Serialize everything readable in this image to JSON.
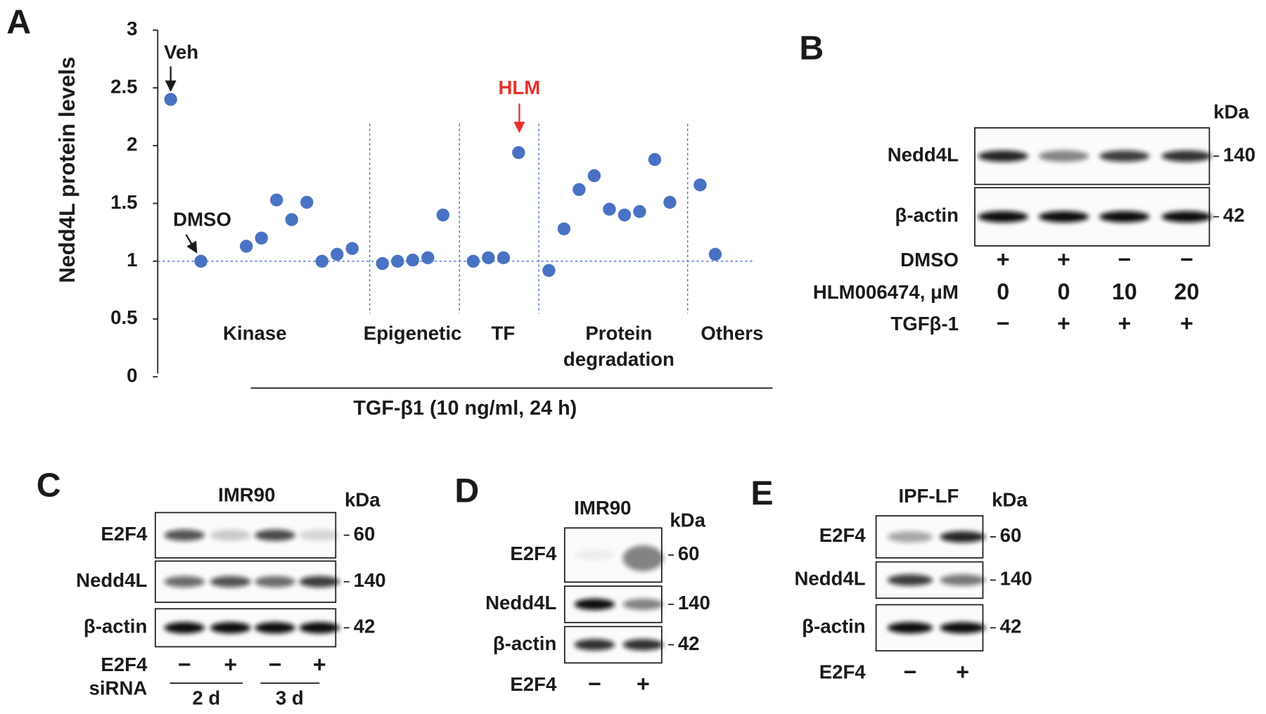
{
  "chart_data": {
    "type": "scatter",
    "y_label": "Nedd4L protein levels",
    "color": "#4a72c4",
    "categories": [
      null,
      null,
      null,
      null,
      null,
      null,
      null,
      null,
      null,
      null,
      null,
      null,
      null,
      null,
      null,
      null,
      null,
      null,
      null,
      null,
      null,
      null,
      null,
      null,
      null,
      null,
      null,
      null,
      null,
      null,
      null,
      null,
      null,
      null,
      null,
      null,
      null
    ],
    "values": [
      2.4,
      null,
      1.0,
      null,
      null,
      1.13,
      1.2,
      1.53,
      1.36,
      1.51,
      1.0,
      1.06,
      1.11,
      null,
      0.98,
      1.0,
      1.01,
      1.03,
      1.4,
      null,
      1.0,
      1.03,
      1.03,
      1.94,
      null,
      0.92,
      1.28,
      1.62,
      1.74,
      1.45,
      1.4,
      1.43,
      1.88,
      1.51,
      null,
      1.66,
      1.06
    ],
    "ylim": [
      0,
      3
    ],
    "yticks": [
      0,
      0.5,
      1,
      1.5,
      2,
      2.5,
      3
    ],
    "reference_line": 1,
    "group_labels": [
      [
        "Kinase"
      ],
      [
        "Epigenetic"
      ],
      [
        "TF"
      ],
      [
        "Protein",
        "degradation"
      ],
      [
        "Others"
      ]
    ],
    "treatment_label": "TGF-β1 (10 ng/ml, 24 h)",
    "annotations": [
      {
        "text": "Veh",
        "color": "#1a1a1a"
      },
      {
        "text": "DMSO",
        "color": "#1a1a1a"
      },
      {
        "text": "HLM",
        "color": "#e8302a"
      }
    ]
  },
  "panel_labels": [
    "A",
    "B",
    "C",
    "D",
    "E"
  ],
  "blots": {
    "B": {
      "kda_header": "kDa",
      "bands": [
        {
          "label": "Nedd4L",
          "kda": "140"
        },
        {
          "label": "β-actin",
          "kda": "42"
        }
      ],
      "conditions": [
        {
          "label": "DMSO",
          "values": [
            "+",
            "+",
            "−",
            "−"
          ]
        },
        {
          "label": "HLM006474, μM",
          "values": [
            "0",
            "0",
            "10",
            "20"
          ]
        },
        {
          "label": "TGFβ-1",
          "values": [
            "−",
            "+",
            "+",
            "+"
          ]
        }
      ]
    },
    "C": {
      "title": "IMR90",
      "kda_header": "kDa",
      "bands": [
        {
          "label": "E2F4",
          "kda": "60"
        },
        {
          "label": "Nedd4L",
          "kda": "140"
        },
        {
          "label": "β-actin",
          "kda": "42"
        }
      ],
      "conditions": [
        {
          "label": "E2F4",
          "values": [
            "−",
            "+",
            "−",
            "+"
          ]
        },
        {
          "label": "siRNA"
        }
      ],
      "time_points": [
        "2 d",
        "3 d"
      ]
    },
    "D": {
      "title": "IMR90",
      "kda_header": "kDa",
      "bands": [
        {
          "label": "E2F4",
          "kda": "60"
        },
        {
          "label": "Nedd4L",
          "kda": "140"
        },
        {
          "label": "β-actin",
          "kda": "42"
        }
      ],
      "conditions": [
        {
          "label": "E2F4",
          "values": [
            "−",
            "+"
          ]
        }
      ]
    },
    "E": {
      "title": "IPF-LF",
      "kda_header": "kDa",
      "bands": [
        {
          "label": "E2F4",
          "kda": "60"
        },
        {
          "label": "Nedd4L",
          "kda": "140"
        },
        {
          "label": "β-actin",
          "kda": "42"
        }
      ],
      "conditions": [
        {
          "label": "E2F4",
          "values": [
            "−",
            "+"
          ]
        }
      ]
    }
  }
}
